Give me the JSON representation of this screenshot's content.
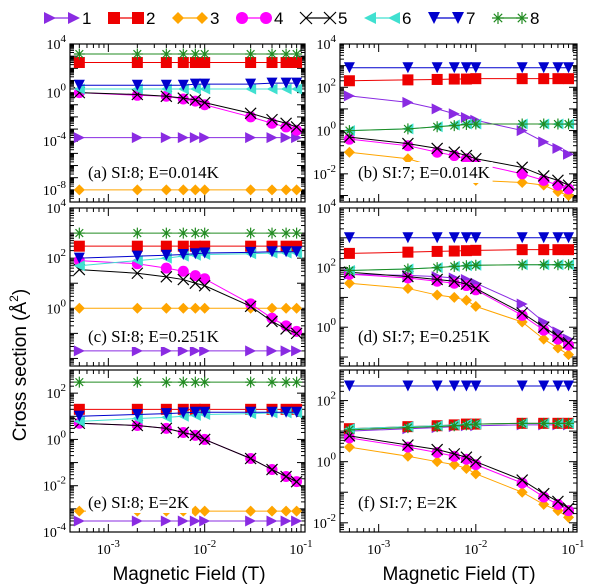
{
  "figure": {
    "ylabel_prefix": "Cross section (",
    "ylabel_unit": "Å",
    "ylabel_exp": "2",
    "ylabel_suffix": ")",
    "xlabel": "Magnetic Field (T)"
  },
  "legend": [
    {
      "label": "1",
      "color": "#8a2be2",
      "marker": "triangle-right"
    },
    {
      "label": "2",
      "color": "#ee0000",
      "marker": "square"
    },
    {
      "label": "3",
      "color": "#ffa500",
      "marker": "diamond"
    },
    {
      "label": "4",
      "color": "#ff00ff",
      "marker": "circle"
    },
    {
      "label": "5",
      "color": "#000000",
      "marker": "x"
    },
    {
      "label": "6",
      "color": "#40e0d0",
      "marker": "triangle-left"
    },
    {
      "label": "7",
      "color": "#0000cd",
      "marker": "triangle-down"
    },
    {
      "label": "8",
      "color": "#228b22",
      "marker": "star"
    }
  ],
  "chart_data": [
    {
      "type": "line",
      "xscale": "log",
      "yscale": "log",
      "title": "(a) SI:8; E=0.014K",
      "xlim": [
        0.0004,
        0.11
      ],
      "ylim": [
        1e-09,
        10000
      ],
      "yticks": [
        {
          "v": 1e-08,
          "m": "10",
          "e": "-8"
        },
        {
          "v": 0.0001,
          "m": "10",
          "e": "-4"
        },
        {
          "v": 1,
          "m": "10",
          "e": "0"
        },
        {
          "v": 10000,
          "m": "10",
          "e": "4"
        }
      ],
      "x": [
        0.0005,
        0.002,
        0.004,
        0.006,
        0.008,
        0.01,
        0.03,
        0.05,
        0.07,
        0.09
      ],
      "series": [
        {
          "name": "1",
          "values": [
            0.0002,
            0.0002,
            0.0002,
            0.0002,
            0.0002,
            0.0002,
            0.0002,
            0.0002,
            0.0002,
            0.0002
          ]
        },
        {
          "name": "2",
          "values": [
            300,
            300,
            300,
            300,
            300,
            300,
            300,
            300,
            300,
            300
          ]
        },
        {
          "name": "3",
          "values": [
            1e-08,
            1e-08,
            1e-08,
            1e-08,
            1e-08,
            1e-08,
            1e-08,
            1e-08,
            1e-08,
            1e-08
          ]
        },
        {
          "name": "4",
          "values": [
            1.0,
            0.6,
            0.5,
            0.3,
            0.2,
            0.1,
            0.01,
            0.003,
            0.0015,
            0.0008
          ]
        },
        {
          "name": "5",
          "values": [
            1.0,
            0.7,
            0.5,
            0.35,
            0.25,
            0.15,
            0.02,
            0.006,
            0.003,
            0.0015
          ]
        },
        {
          "name": "6",
          "values": [
            2,
            2,
            2,
            2,
            2,
            2,
            2,
            2,
            2,
            2
          ]
        },
        {
          "name": "7",
          "values": [
            4,
            4,
            4,
            4,
            5,
            5,
            5,
            6,
            6,
            6
          ]
        },
        {
          "name": "8",
          "values": [
            1500,
            1500,
            1500,
            1500,
            1500,
            1500,
            1500,
            1500,
            1500,
            1500
          ]
        }
      ]
    },
    {
      "type": "line",
      "xscale": "log",
      "yscale": "log",
      "title": "(b) SI:7; E=0.014K",
      "xlim": [
        0.0004,
        0.11
      ],
      "ylim": [
        0.0005,
        10000
      ],
      "yticks": [
        {
          "v": 0.01,
          "m": "10",
          "e": "-2"
        },
        {
          "v": 1,
          "m": "10",
          "e": "0"
        },
        {
          "v": 100,
          "m": "10",
          "e": "2"
        },
        {
          "v": 10000,
          "m": "10",
          "e": "4"
        }
      ],
      "x": [
        0.0005,
        0.002,
        0.004,
        0.006,
        0.008,
        0.01,
        0.03,
        0.05,
        0.07,
        0.09
      ],
      "series": [
        {
          "name": "1",
          "values": [
            40,
            20,
            10,
            6,
            4,
            3,
            1,
            0.3,
            0.15,
            0.08
          ]
        },
        {
          "name": "2",
          "values": [
            200,
            220,
            230,
            240,
            240,
            250,
            250,
            250,
            250,
            250
          ]
        },
        {
          "name": "3",
          "values": [
            0.1,
            0.05,
            0.02,
            0.015,
            0.01,
            0.005,
            0.004,
            0.003,
            0.0015,
            0.001
          ]
        },
        {
          "name": "4",
          "values": [
            0.4,
            0.2,
            0.1,
            0.07,
            0.05,
            0.03,
            0.01,
            0.005,
            0.003,
            0.002
          ]
        },
        {
          "name": "5",
          "values": [
            0.5,
            0.25,
            0.15,
            0.1,
            0.07,
            0.05,
            0.02,
            0.008,
            0.005,
            0.003
          ]
        },
        {
          "name": "6",
          "values": [
            1,
            1.2,
            1.5,
            1.8,
            2,
            2,
            2,
            2,
            2,
            2
          ]
        },
        {
          "name": "7",
          "values": [
            800,
            800,
            800,
            800,
            800,
            800,
            800,
            800,
            800,
            800
          ]
        },
        {
          "name": "8",
          "values": [
            1.0,
            1.2,
            1.5,
            1.7,
            1.9,
            2,
            2,
            2,
            2,
            2
          ]
        }
      ]
    },
    {
      "type": "line",
      "xscale": "log",
      "yscale": "log",
      "title": "(c) SI:8; E=0.251K",
      "xlim": [
        0.0004,
        0.11
      ],
      "ylim": [
        0.005,
        10000
      ],
      "yticks": [
        {
          "v": 1,
          "m": "10",
          "e": "0"
        },
        {
          "v": 100,
          "m": "10",
          "e": "2"
        },
        {
          "v": 10000,
          "m": "10",
          "e": "4"
        }
      ],
      "x": [
        0.0005,
        0.002,
        0.004,
        0.006,
        0.008,
        0.01,
        0.03,
        0.05,
        0.07,
        0.09
      ],
      "series": [
        {
          "name": "1",
          "values": [
            0.02,
            0.02,
            0.02,
            0.02,
            0.02,
            0.02,
            0.02,
            0.02,
            0.02,
            0.02
          ]
        },
        {
          "name": "2",
          "values": [
            300,
            300,
            300,
            300,
            300,
            300,
            300,
            300,
            300,
            300
          ]
        },
        {
          "name": "3",
          "values": [
            1,
            1,
            1,
            1,
            1,
            1,
            1,
            1,
            1,
            1
          ]
        },
        {
          "name": "4",
          "values": [
            80,
            60,
            40,
            30,
            20,
            15,
            1.5,
            0.4,
            0.2,
            0.12
          ]
        },
        {
          "name": "5",
          "values": [
            35,
            25,
            18,
            14,
            10,
            8,
            1.2,
            0.3,
            0.15,
            0.1
          ]
        },
        {
          "name": "6",
          "values": [
            50,
            80,
            100,
            120,
            130,
            140,
            150,
            160,
            160,
            160
          ]
        },
        {
          "name": "7",
          "values": [
            100,
            120,
            130,
            140,
            150,
            160,
            170,
            180,
            180,
            180
          ]
        },
        {
          "name": "8",
          "values": [
            1000,
            1000,
            1000,
            1000,
            1000,
            1000,
            1000,
            1000,
            1000,
            1000
          ]
        }
      ]
    },
    {
      "type": "line",
      "xscale": "log",
      "yscale": "log",
      "title": "(d) SI:7; E=0.251K",
      "xlim": [
        0.0004,
        0.11
      ],
      "ylim": [
        0.05,
        10000
      ],
      "yticks": [
        {
          "v": 1,
          "m": "10",
          "e": "0"
        },
        {
          "v": 100,
          "m": "10",
          "e": "2"
        },
        {
          "v": 10000,
          "m": "10",
          "e": "4"
        }
      ],
      "x": [
        0.0005,
        0.002,
        0.004,
        0.006,
        0.008,
        0.01,
        0.03,
        0.05,
        0.07,
        0.09
      ],
      "series": [
        {
          "name": "1",
          "values": [
            60,
            55,
            50,
            45,
            40,
            30,
            6,
            1.5,
            0.7,
            0.4
          ]
        },
        {
          "name": "2",
          "values": [
            300,
            330,
            350,
            360,
            370,
            380,
            400,
            400,
            400,
            400
          ]
        },
        {
          "name": "3",
          "values": [
            30,
            20,
            12,
            10,
            8,
            5,
            1.5,
            0.4,
            0.2,
            0.12
          ]
        },
        {
          "name": "4",
          "values": [
            60,
            45,
            35,
            30,
            25,
            18,
            2.5,
            0.8,
            0.4,
            0.25
          ]
        },
        {
          "name": "5",
          "values": [
            70,
            50,
            40,
            35,
            28,
            20,
            3,
            1,
            0.5,
            0.3
          ]
        },
        {
          "name": "6",
          "values": [
            80,
            90,
            100,
            110,
            115,
            120,
            125,
            125,
            125,
            125
          ]
        },
        {
          "name": "7",
          "values": [
            1000,
            1000,
            1000,
            1000,
            1000,
            1000,
            1000,
            1000,
            1000,
            1000
          ]
        },
        {
          "name": "8",
          "values": [
            80,
            90,
            100,
            110,
            115,
            120,
            125,
            125,
            125,
            125
          ]
        }
      ]
    },
    {
      "type": "line",
      "xscale": "log",
      "yscale": "log",
      "title": "(e) SI:8; E=2K",
      "xlim": [
        0.0004,
        0.11
      ],
      "ylim": [
        0.0001,
        1000
      ],
      "yticks": [
        {
          "v": 0.0001,
          "m": "10",
          "e": "-4"
        },
        {
          "v": 0.01,
          "m": "10",
          "e": "-2"
        },
        {
          "v": 1,
          "m": "10",
          "e": "0"
        },
        {
          "v": 100,
          "m": "10",
          "e": "2"
        }
      ],
      "x": [
        0.0005,
        0.002,
        0.004,
        0.006,
        0.008,
        0.01,
        0.03,
        0.05,
        0.07,
        0.09
      ],
      "series": [
        {
          "name": "1",
          "values": [
            0.0003,
            0.0003,
            0.0003,
            0.0003,
            0.0003,
            0.0003,
            0.0003,
            0.0003,
            0.0003,
            0.0003
          ]
        },
        {
          "name": "2",
          "values": [
            20,
            20,
            20,
            20,
            20,
            20,
            20,
            20,
            20,
            20
          ]
        },
        {
          "name": "3",
          "values": [
            0.0008,
            0.0008,
            0.0008,
            0.0008,
            0.0008,
            0.0008,
            0.0008,
            0.0008,
            0.0008,
            0.0008
          ]
        },
        {
          "name": "4",
          "values": [
            5,
            4,
            3,
            2,
            1.5,
            1,
            0.15,
            0.05,
            0.025,
            0.015
          ]
        },
        {
          "name": "5",
          "values": [
            5,
            4,
            3,
            2,
            1.5,
            1,
            0.15,
            0.05,
            0.025,
            0.015
          ]
        },
        {
          "name": "6",
          "values": [
            6,
            8,
            9,
            10,
            11,
            12,
            13,
            14,
            14,
            14
          ]
        },
        {
          "name": "7",
          "values": [
            10,
            12,
            13,
            14,
            15,
            15,
            15,
            15,
            15,
            15
          ]
        },
        {
          "name": "8",
          "values": [
            300,
            300,
            300,
            300,
            300,
            300,
            300,
            300,
            300,
            300
          ]
        }
      ]
    },
    {
      "type": "line",
      "xscale": "log",
      "yscale": "log",
      "title": "(f) SI:7; E=2K",
      "xlim": [
        0.0004,
        0.11
      ],
      "ylim": [
        0.005,
        1000
      ],
      "yticks": [
        {
          "v": 0.01,
          "m": "10",
          "e": "-2"
        },
        {
          "v": 1,
          "m": "10",
          "e": "0"
        },
        {
          "v": 100,
          "m": "10",
          "e": "2"
        }
      ],
      "x": [
        0.0005,
        0.002,
        0.004,
        0.006,
        0.008,
        0.01,
        0.03,
        0.05,
        0.07,
        0.09
      ],
      "series": [
        {
          "name": "1",
          "values": [
            10,
            12,
            13,
            14,
            15,
            15,
            16,
            16,
            16,
            16
          ]
        },
        {
          "name": "2",
          "values": [
            12,
            14,
            15,
            16,
            17,
            17,
            18,
            18,
            18,
            18
          ]
        },
        {
          "name": "3",
          "values": [
            3,
            1.5,
            1,
            0.8,
            0.6,
            0.4,
            0.1,
            0.04,
            0.025,
            0.015
          ]
        },
        {
          "name": "4",
          "values": [
            6,
            3,
            2,
            1.5,
            1.2,
            0.8,
            0.2,
            0.07,
            0.04,
            0.025
          ]
        },
        {
          "name": "5",
          "values": [
            7,
            3.5,
            2.5,
            1.8,
            1.4,
            1,
            0.25,
            0.09,
            0.05,
            0.03
          ]
        },
        {
          "name": "6",
          "values": [
            12,
            14,
            15,
            16,
            17,
            17,
            18,
            18,
            18,
            18
          ]
        },
        {
          "name": "7",
          "values": [
            300,
            300,
            300,
            300,
            300,
            300,
            300,
            300,
            300,
            300
          ]
        },
        {
          "name": "8",
          "values": [
            11,
            13,
            14,
            15,
            16,
            17,
            18,
            18,
            18,
            18
          ]
        }
      ]
    }
  ],
  "xticks": [
    {
      "v": 0.001,
      "m": "10",
      "e": "-3"
    },
    {
      "v": 0.01,
      "m": "10",
      "e": "-2"
    },
    {
      "v": 0.1,
      "m": "10",
      "e": "-1"
    }
  ]
}
